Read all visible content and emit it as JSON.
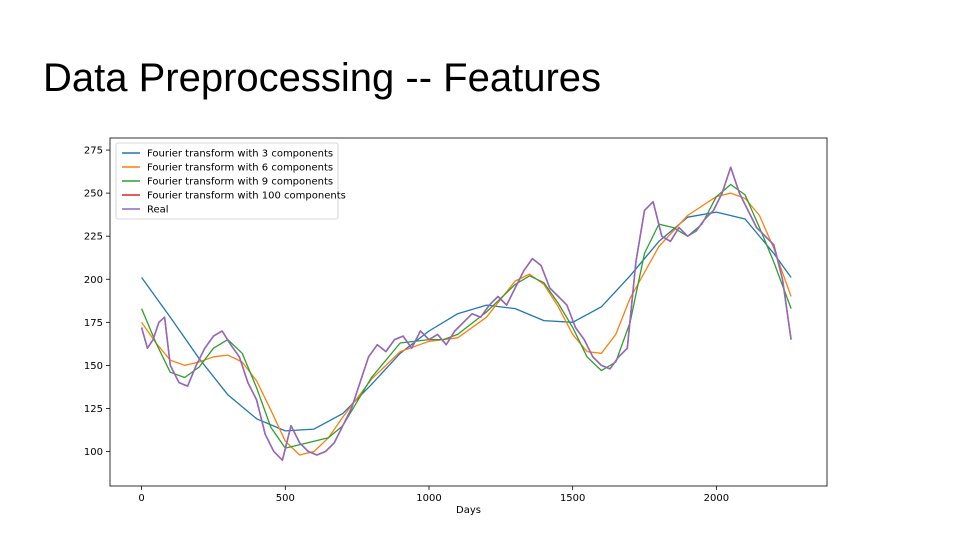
{
  "slide": {
    "title": "Data Preprocessing -- Features"
  },
  "chart_data": {
    "type": "line",
    "title": "",
    "xlabel": "Days",
    "ylabel": "",
    "xlim": [
      -110,
      2385
    ],
    "ylim": [
      80,
      282
    ],
    "xticks": [
      0,
      500,
      1000,
      1500,
      2000
    ],
    "yticks": [
      100,
      125,
      150,
      175,
      200,
      225,
      250,
      275
    ],
    "grid": false,
    "legend_position": "upper-left",
    "series": [
      {
        "name": "Fourier transform with 3 components",
        "color": "#1f77b4",
        "x": [
          0,
          100,
          200,
          300,
          400,
          500,
          600,
          700,
          800,
          900,
          1000,
          1100,
          1200,
          1300,
          1400,
          1500,
          1600,
          1700,
          1800,
          1900,
          2000,
          2100,
          2200,
          2260
        ],
        "y": [
          201,
          178,
          154,
          133,
          119,
          112,
          113,
          122,
          139,
          157,
          170,
          180,
          185,
          183,
          176,
          175,
          184,
          202,
          222,
          236,
          239,
          235,
          215,
          201
        ]
      },
      {
        "name": "Fourier transform with 6 components",
        "color": "#ff7f0e",
        "x": [
          0,
          50,
          100,
          150,
          200,
          250,
          300,
          350,
          400,
          450,
          500,
          550,
          600,
          650,
          700,
          800,
          900,
          1000,
          1100,
          1200,
          1300,
          1350,
          1400,
          1450,
          1500,
          1550,
          1600,
          1650,
          1700,
          1800,
          1900,
          2000,
          2050,
          2100,
          2150,
          2200,
          2260
        ],
        "y": [
          175,
          163,
          153,
          150,
          152,
          155,
          156,
          152,
          141,
          124,
          106,
          98,
          100,
          108,
          120,
          142,
          158,
          164,
          166,
          178,
          199,
          203,
          197,
          184,
          168,
          158,
          157,
          168,
          189,
          219,
          237,
          248,
          250,
          247,
          237,
          218,
          190
        ]
      },
      {
        "name": "Fourier transform with 9 components",
        "color": "#2ca02c",
        "x": [
          0,
          50,
          100,
          150,
          200,
          250,
          300,
          350,
          400,
          450,
          500,
          550,
          600,
          650,
          700,
          800,
          900,
          1000,
          1050,
          1100,
          1200,
          1300,
          1350,
          1400,
          1450,
          1500,
          1550,
          1600,
          1650,
          1700,
          1750,
          1800,
          1850,
          1900,
          1950,
          2000,
          2050,
          2100,
          2150,
          2200,
          2260
        ],
        "y": [
          183,
          163,
          146,
          143,
          149,
          160,
          165,
          157,
          137,
          114,
          102,
          104,
          106,
          108,
          115,
          143,
          163,
          165,
          165,
          168,
          181,
          197,
          202,
          198,
          186,
          172,
          155,
          147,
          152,
          175,
          215,
          232,
          230,
          225,
          232,
          248,
          255,
          249,
          230,
          210,
          183
        ]
      },
      {
        "name": "Fourier transform with 100 components",
        "color": "#d62728",
        "x": [
          0,
          20,
          40,
          60,
          80,
          100,
          130,
          160,
          190,
          220,
          250,
          280,
          310,
          340,
          370,
          400,
          430,
          460,
          490,
          520,
          550,
          580,
          610,
          640,
          670,
          700,
          730,
          760,
          790,
          820,
          850,
          880,
          910,
          940,
          970,
          1000,
          1030,
          1060,
          1090,
          1120,
          1150,
          1180,
          1210,
          1240,
          1270,
          1300,
          1330,
          1360,
          1390,
          1420,
          1450,
          1480,
          1510,
          1540,
          1570,
          1600,
          1630,
          1660,
          1690,
          1720,
          1750,
          1780,
          1810,
          1840,
          1870,
          1900,
          1930,
          1960,
          1990,
          2020,
          2050,
          2080,
          2110,
          2140,
          2170,
          2200,
          2230,
          2260
        ],
        "y": [
          172,
          160,
          165,
          175,
          178,
          150,
          140,
          138,
          150,
          160,
          167,
          170,
          162,
          155,
          140,
          130,
          110,
          100,
          95,
          115,
          105,
          100,
          98,
          100,
          105,
          115,
          125,
          140,
          155,
          162,
          158,
          165,
          167,
          160,
          170,
          165,
          168,
          162,
          170,
          175,
          180,
          178,
          185,
          190,
          185,
          195,
          205,
          212,
          208,
          195,
          190,
          185,
          172,
          165,
          155,
          150,
          148,
          155,
          160,
          210,
          240,
          245,
          225,
          222,
          230,
          225,
          228,
          235,
          240,
          250,
          265,
          250,
          240,
          230,
          225,
          220,
          200,
          165
        ]
      },
      {
        "name": "Real",
        "color": "#9467bd",
        "x": [
          0,
          20,
          40,
          60,
          80,
          100,
          130,
          160,
          190,
          220,
          250,
          280,
          310,
          340,
          370,
          400,
          430,
          460,
          490,
          520,
          550,
          580,
          610,
          640,
          670,
          700,
          730,
          760,
          790,
          820,
          850,
          880,
          910,
          940,
          970,
          1000,
          1030,
          1060,
          1090,
          1120,
          1150,
          1180,
          1210,
          1240,
          1270,
          1300,
          1330,
          1360,
          1390,
          1420,
          1450,
          1480,
          1510,
          1540,
          1570,
          1600,
          1630,
          1660,
          1690,
          1720,
          1750,
          1780,
          1810,
          1840,
          1870,
          1900,
          1930,
          1960,
          1990,
          2020,
          2050,
          2080,
          2110,
          2140,
          2170,
          2200,
          2230,
          2260
        ],
        "y": [
          172,
          160,
          165,
          175,
          178,
          150,
          140,
          138,
          150,
          160,
          167,
          170,
          162,
          155,
          140,
          130,
          110,
          100,
          95,
          115,
          105,
          100,
          98,
          100,
          105,
          115,
          125,
          140,
          155,
          162,
          158,
          165,
          167,
          160,
          170,
          165,
          168,
          162,
          170,
          175,
          180,
          178,
          185,
          190,
          185,
          195,
          205,
          212,
          208,
          195,
          190,
          185,
          172,
          165,
          155,
          150,
          148,
          155,
          160,
          210,
          240,
          245,
          225,
          222,
          230,
          225,
          228,
          235,
          240,
          250,
          265,
          250,
          240,
          230,
          225,
          220,
          200,
          165
        ]
      }
    ]
  }
}
